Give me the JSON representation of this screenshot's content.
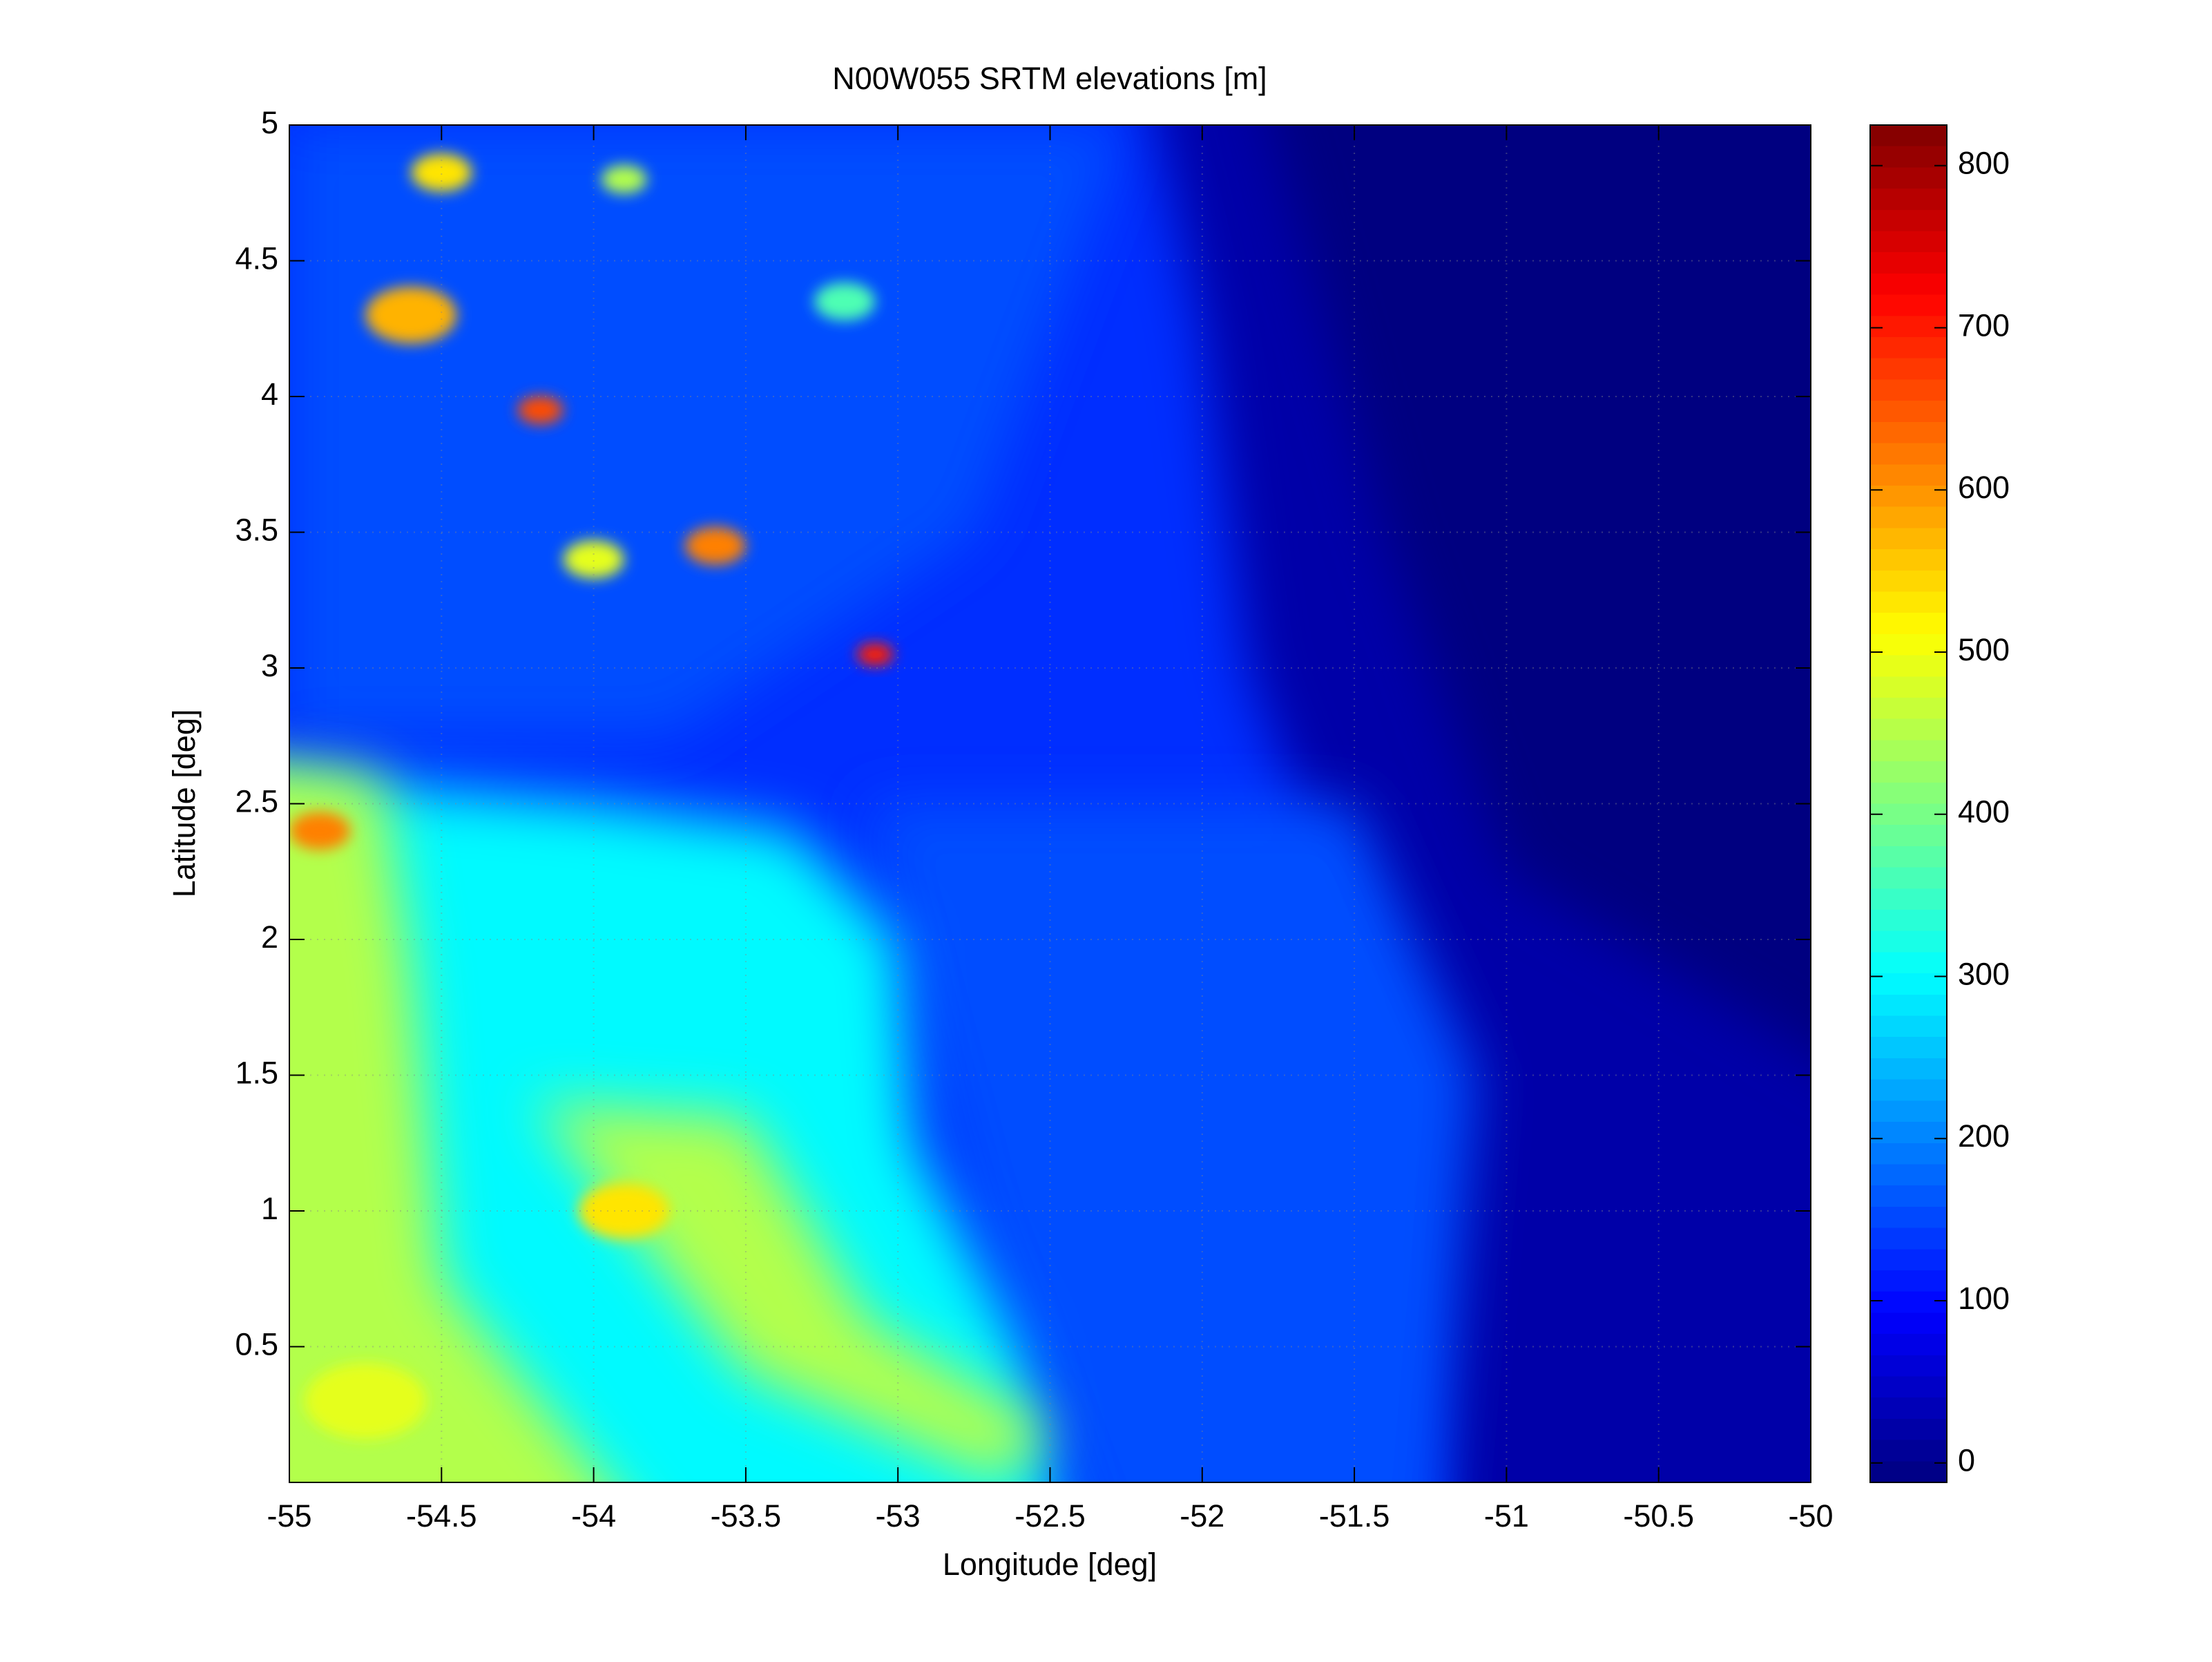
{
  "chart_data": {
    "type": "heatmap",
    "title": "N00W055 SRTM elevations [m]",
    "x_label": "Longitude [deg]",
    "y_label": "Latitude [deg]",
    "xlim": [
      -55,
      -50
    ],
    "xticks": [
      -55,
      -54.5,
      -54,
      -53.5,
      -53,
      -52.5,
      -52,
      -51.5,
      -51,
      -50.5,
      -50
    ],
    "ylim": [
      0,
      5
    ],
    "yticks": [
      0.5,
      1,
      1.5,
      2,
      2.5,
      3,
      3.5,
      4,
      4.5,
      5
    ],
    "colormap": "jet",
    "clim": [
      -12,
      825
    ],
    "colorbar_ticks": [
      0,
      100,
      200,
      300,
      400,
      500,
      600,
      700,
      800
    ],
    "grid": true
  }
}
